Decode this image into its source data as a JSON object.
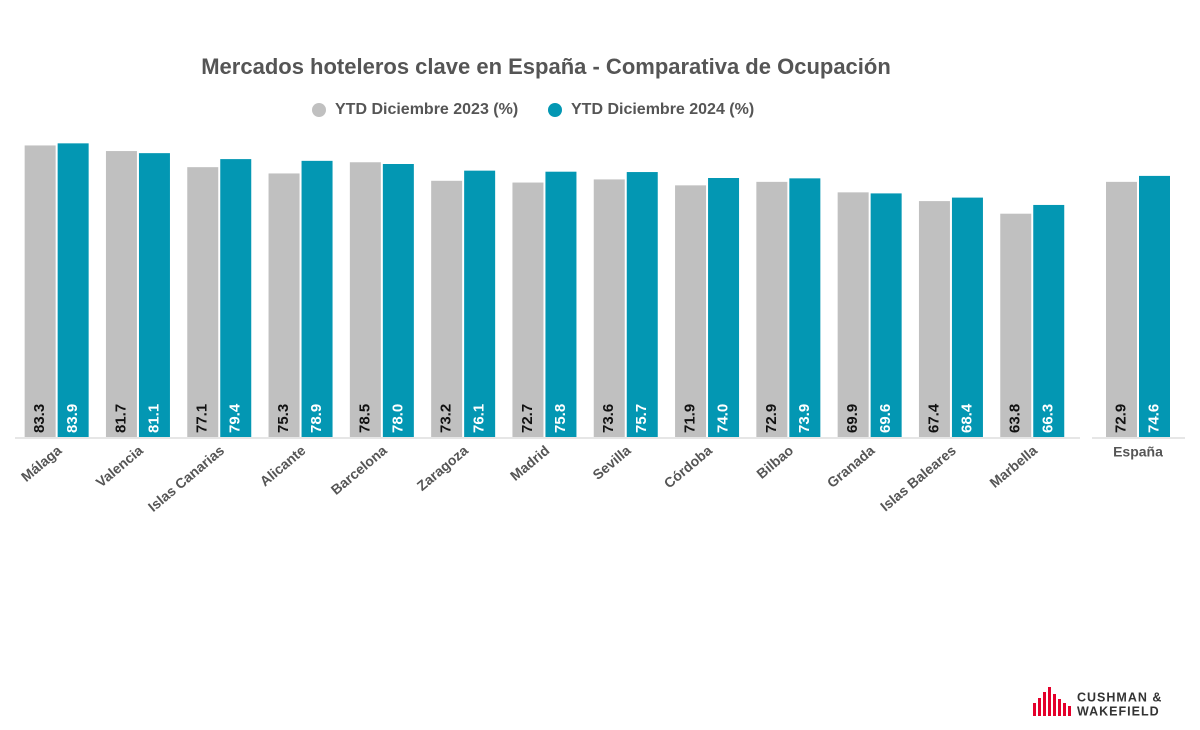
{
  "chart_data": [
    {
      "type": "bar",
      "title": "Mercados hoteleros clave en España - Comparativa de Ocupación",
      "categories": [
        "Málaga",
        "Valencia",
        "Islas Canarias",
        "Alicante",
        "Barcelona",
        "Zaragoza",
        "Madrid",
        "Sevilla",
        "Córdoba",
        "Bilbao",
        "Granada",
        "Islas Baleares",
        "Marbella"
      ],
      "series": [
        {
          "name": "YTD Diciembre 2023 (%)",
          "color": "#c0c0c0",
          "values": [
            83.3,
            81.7,
            77.1,
            75.3,
            78.5,
            73.2,
            72.7,
            73.6,
            71.9,
            72.9,
            69.9,
            67.4,
            63.8
          ],
          "value_labels": [
            "83.3",
            "81.7",
            "77.1",
            "75.3",
            "78.5",
            "73.2",
            "72.7",
            "73.6",
            "71.9",
            "72.9",
            "69.9",
            "67.4",
            "63.8"
          ]
        },
        {
          "name": "YTD Diciembre 2024 (%)",
          "color": "#0397b3",
          "values": [
            83.9,
            81.1,
            79.4,
            78.9,
            78.0,
            76.1,
            75.8,
            75.7,
            74.0,
            73.9,
            69.6,
            68.4,
            66.3
          ],
          "value_labels": [
            "83.9",
            "81.1",
            "79.4",
            "78.9",
            "78.0",
            "76.1",
            "75.8",
            "75.7",
            "74.0",
            "73.9",
            "69.6",
            "68.4",
            "66.3"
          ]
        }
      ]
    },
    {
      "type": "bar",
      "categories": [
        "España"
      ],
      "series": [
        {
          "color": "#c0c0c0",
          "values": [
            72.9
          ],
          "value_labels": [
            "72.9"
          ]
        },
        {
          "color": "#0397b3",
          "values": [
            74.6
          ],
          "value_labels": [
            "74.6"
          ]
        }
      ]
    }
  ],
  "logo": {
    "line1": "CUSHMAN &",
    "line2": "WAKEFIELD"
  }
}
